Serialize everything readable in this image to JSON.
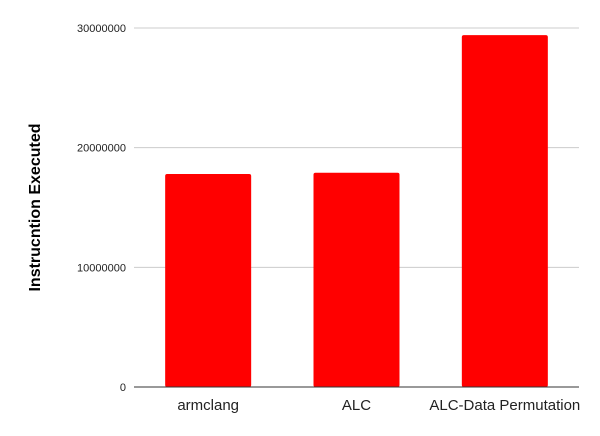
{
  "chart_data": {
    "type": "bar",
    "title": "",
    "xlabel": "",
    "ylabel": "Instrucntion Executed",
    "categories": [
      "armclang",
      "ALC",
      "ALC-Data Permutation"
    ],
    "series": [
      {
        "values": [
          17800000,
          17900000,
          29400000
        ],
        "color": "#ff0000"
      }
    ],
    "ylim": [
      0,
      30000000
    ],
    "yticks": [
      0,
      10000000,
      20000000,
      30000000
    ],
    "ytick_labels": [
      "0",
      "10000000",
      "20000000",
      "30000000"
    ],
    "grid": true,
    "legend": "none"
  }
}
